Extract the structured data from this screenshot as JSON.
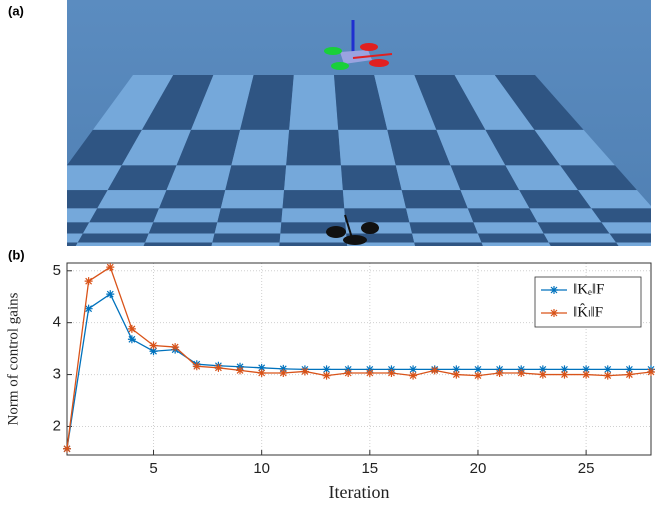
{
  "panel_labels": [
    "(a)",
    "(b)"
  ],
  "chart_data": {
    "type": "line",
    "xlabel": "Iteration",
    "ylabel": "Norm of control gains",
    "x": [
      1,
      2,
      3,
      4,
      5,
      6,
      7,
      8,
      9,
      10,
      11,
      12,
      13,
      14,
      15,
      16,
      17,
      18,
      19,
      20,
      21,
      22,
      23,
      24,
      25,
      26,
      27,
      28
    ],
    "series": [
      {
        "name": "‖Kₑ‖F",
        "color": "#0072bd",
        "values": [
          1.57,
          4.27,
          4.55,
          3.68,
          3.45,
          3.48,
          3.2,
          3.17,
          3.15,
          3.13,
          3.11,
          3.1,
          3.1,
          3.1,
          3.1,
          3.1,
          3.1,
          3.1,
          3.1,
          3.1,
          3.1,
          3.1,
          3.1,
          3.1,
          3.1,
          3.1,
          3.1,
          3.1
        ]
      },
      {
        "name": "‖K̂ₗ‖F",
        "color": "#d95319",
        "values": [
          1.57,
          4.8,
          5.07,
          3.88,
          3.56,
          3.53,
          3.16,
          3.13,
          3.08,
          3.03,
          3.03,
          3.06,
          2.98,
          3.03,
          3.03,
          3.03,
          2.98,
          3.08,
          3.0,
          2.98,
          3.03,
          3.03,
          3.0,
          3.0,
          3.0,
          2.98,
          3.0,
          3.05
        ]
      }
    ],
    "xlim": [
      1,
      28
    ],
    "ylim": [
      1.45,
      5.15
    ],
    "xticks": [
      5,
      10,
      15,
      20,
      25
    ],
    "yticks": [
      2,
      3,
      4,
      5
    ],
    "grid": true,
    "legend": "top-right"
  }
}
